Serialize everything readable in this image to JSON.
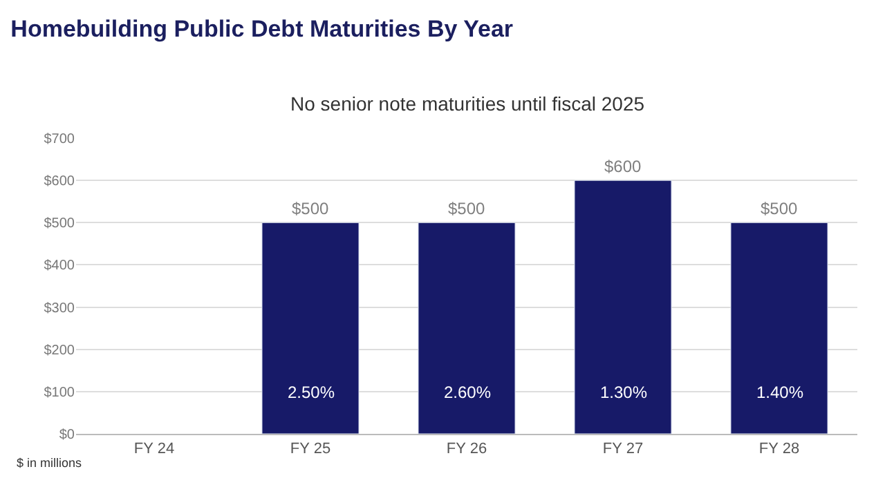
{
  "chart_data": {
    "type": "bar",
    "title": "Homebuilding Public Debt Maturities By Year",
    "subtitle": "No senior note maturities until fiscal 2025",
    "categories": [
      "FY 24",
      "FY 25",
      "FY 26",
      "FY 27",
      "FY 28"
    ],
    "values": [
      null,
      500,
      500,
      600,
      500
    ],
    "value_labels": [
      null,
      "$500",
      "$500",
      "$600",
      "$500"
    ],
    "color": "#171a68",
    "ylim": [
      0,
      700
    ],
    "yticks": [
      {
        "value": 0,
        "label": "$0"
      },
      {
        "value": 100,
        "label": "$100"
      },
      {
        "value": 200,
        "label": "$200"
      },
      {
        "value": 300,
        "label": "$300"
      },
      {
        "value": 400,
        "label": "$400"
      },
      {
        "value": 500,
        "label": "$500"
      },
      {
        "value": 600,
        "label": "$600"
      },
      {
        "value": 700,
        "label": "$700"
      }
    ],
    "grid": "y",
    "annotations": [
      "2.50%",
      "2.60%",
      "1.30%",
      "1.40%",
      "$ in millions"
    ]
  }
}
